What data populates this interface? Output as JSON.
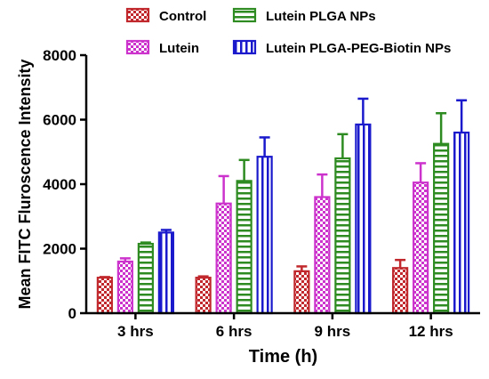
{
  "chart_data": {
    "type": "bar",
    "xlabel": "Time (h)",
    "ylabel": "Mean FITC Fluroscence Intensity",
    "ylim": [
      0,
      8000
    ],
    "yticks": [
      0,
      2000,
      4000,
      6000,
      8000
    ],
    "categories": [
      "3 hrs",
      "6 hrs",
      "9 hrs",
      "12 hrs"
    ],
    "legend_position": "top",
    "series": [
      {
        "name": "Control",
        "color": "#c0282d",
        "pattern": "checker",
        "values": [
          1100,
          1100,
          1300,
          1400
        ],
        "errors": [
          20,
          40,
          150,
          250
        ]
      },
      {
        "name": "Lutein",
        "color": "#cc33cc",
        "pattern": "checker",
        "values": [
          1600,
          3400,
          3600,
          4050
        ],
        "errors": [
          100,
          850,
          700,
          600
        ]
      },
      {
        "name": "Lutein PLGA NPs",
        "color": "#2e8b22",
        "pattern": "hstripe",
        "values": [
          2150,
          4100,
          4800,
          5250
        ],
        "errors": [
          40,
          650,
          750,
          950
        ]
      },
      {
        "name": "Lutein PLGA-PEG-Biotin NPs",
        "color": "#1a1acc",
        "pattern": "vstripe",
        "values": [
          2500,
          4850,
          5850,
          5600
        ],
        "errors": [
          80,
          600,
          800,
          1000
        ]
      }
    ]
  }
}
